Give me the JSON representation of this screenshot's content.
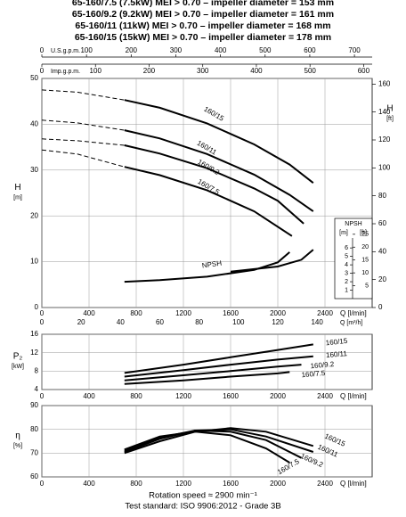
{
  "header": {
    "lines": [
      "65-160/7.5 (7.5kW) MEI > 0.70 – impeller diameter = 153 mm",
      "65-160/9.2 (9.2kW) MEI > 0.70 – impeller diameter = 161 mm",
      "65-160/11 (11kW) MEI > 0.70 – impeller diameter = 168 mm",
      "65-160/15 (15kW) MEI > 0.70 – impeller diameter = 178 mm"
    ]
  },
  "footer": {
    "lines": [
      "Rotation speed ≈ 2900 min⁻¹",
      "Test standard: ISO 9906:2012 - Grade 3B"
    ]
  },
  "chart_data": [
    {
      "type": "line",
      "y_label": "H",
      "y_unit": "[m]",
      "y2_label": "H",
      "y2_unit": "[ft]",
      "x_label": "Q [l/min]",
      "xlim": [
        0,
        2800
      ],
      "xticks": [
        0,
        400,
        800,
        1200,
        1600,
        2000,
        2400
      ],
      "ylim": [
        0,
        50
      ],
      "yticks": [
        0,
        10,
        20,
        30,
        40,
        50
      ],
      "y2lim": [
        0,
        164.04
      ],
      "y2ticks": [
        0,
        20,
        40,
        60,
        80,
        100,
        120,
        140,
        160
      ],
      "grid": true,
      "color": "#000000",
      "secondary_x_axes": [
        {
          "label": "U.S.g.p.m.",
          "position": "top",
          "lim": [
            0,
            739.7
          ],
          "ticks": [
            0,
            100,
            200,
            300,
            400,
            500,
            600,
            700
          ]
        },
        {
          "label": "Imp.g.p.m.",
          "position": "top",
          "lim": [
            0,
            615.9
          ],
          "ticks": [
            0,
            100,
            200,
            300,
            400,
            500,
            600
          ]
        },
        {
          "label": "Q [m³/h]",
          "position": "bottom",
          "lim": [
            0,
            168
          ],
          "ticks": [
            0,
            20,
            40,
            60,
            80,
            100,
            120,
            140
          ]
        }
      ],
      "series": [
        {
          "name": "160/15",
          "x": [
            0,
            300,
            700,
            1000,
            1400,
            1800,
            2100,
            2300
          ],
          "values": [
            47.5,
            47,
            45.3,
            43.6,
            40.2,
            35.6,
            31.2,
            27.2
          ],
          "segment_style": [
            "dashed",
            "dashed",
            "solid",
            "solid",
            "solid",
            "solid",
            "solid"
          ]
        },
        {
          "name": "160/11",
          "x": [
            0,
            300,
            700,
            1000,
            1400,
            1800,
            2100,
            2300
          ],
          "values": [
            40.9,
            40.3,
            38.7,
            36.9,
            33.5,
            29,
            24.6,
            21
          ],
          "segment_style": [
            "dashed",
            "dashed",
            "solid",
            "solid",
            "solid",
            "solid",
            "solid"
          ]
        },
        {
          "name": "160/9.2",
          "x": [
            0,
            300,
            700,
            1000,
            1400,
            1800,
            2000,
            2220
          ],
          "values": [
            36.8,
            36.4,
            35.4,
            33.6,
            30.4,
            26,
            23.3,
            18.3
          ],
          "segment_style": [
            "dashed",
            "dashed",
            "solid",
            "solid",
            "solid",
            "solid",
            "solid"
          ]
        },
        {
          "name": "160/7.5",
          "x": [
            0,
            300,
            700,
            1000,
            1400,
            1800,
            2120
          ],
          "values": [
            34.4,
            33.5,
            30.7,
            28.9,
            25.6,
            21,
            15.6
          ],
          "segment_style": [
            "dashed",
            "dashed",
            "solid",
            "solid",
            "solid",
            "solid"
          ]
        }
      ],
      "npsh": {
        "label": "NPSH",
        "unit": "[m]",
        "unit2": "[ft]",
        "ylim": [
          0,
          9.5
        ],
        "yticks": [
          1,
          2,
          3,
          4,
          5,
          6
        ],
        "y2lim": [
          0,
          31.17
        ],
        "y2ticks": [
          5,
          10,
          15,
          20,
          25
        ],
        "series": [
          {
            "x": [
              700,
              1000,
              1400,
              1800,
              2000,
              2100
            ],
            "values": [
              2.0,
              2.2,
              2.6,
              3.4,
              4.3,
              5.5
            ]
          },
          {
            "x": [
              1600,
              2000,
              2200,
              2300
            ],
            "values": [
              3.2,
              3.8,
              4.6,
              5.8
            ]
          }
        ]
      }
    },
    {
      "type": "line",
      "y_label": "P₂",
      "y_unit": "[kW]",
      "x_label": "Q [l/min]",
      "xlim": [
        0,
        2800
      ],
      "xticks": [
        0,
        400,
        800,
        1200,
        1600,
        2000,
        2400
      ],
      "ylim": [
        4,
        16
      ],
      "yticks": [
        4,
        8,
        12,
        16
      ],
      "grid": true,
      "color": "#000000",
      "series": [
        {
          "name": "160/15",
          "x": [
            700,
            1200,
            1600,
            2000,
            2300
          ],
          "values": [
            7.6,
            9.4,
            11,
            12.6,
            13.8
          ]
        },
        {
          "name": "160/11",
          "x": [
            700,
            1200,
            1600,
            2000,
            2300
          ],
          "values": [
            6.8,
            8.2,
            9.4,
            10.5,
            11.2
          ]
        },
        {
          "name": "160/9.2",
          "x": [
            700,
            1200,
            1600,
            2000,
            2200
          ],
          "values": [
            6,
            7.1,
            8,
            9,
            9.4
          ]
        },
        {
          "name": "160/7.5",
          "x": [
            700,
            1200,
            1600,
            2000,
            2100
          ],
          "values": [
            5.2,
            6,
            6.8,
            7.5,
            7.8
          ]
        }
      ]
    },
    {
      "type": "line",
      "y_label": "η",
      "y_unit": "[%]",
      "x_label": "Q [l/min]",
      "xlim": [
        0,
        2800
      ],
      "xticks": [
        0,
        400,
        800,
        1200,
        1600,
        2000,
        2400
      ],
      "ylim": [
        60,
        90
      ],
      "yticks": [
        60,
        70,
        80,
        90
      ],
      "grid": true,
      "color": "#000000",
      "series": [
        {
          "name": "160/15",
          "x": [
            700,
            1000,
            1300,
            1600,
            1900,
            2300
          ],
          "values": [
            70,
            75,
            79,
            80.5,
            79,
            73
          ]
        },
        {
          "name": "160/11",
          "x": [
            700,
            1000,
            1300,
            1600,
            1900,
            2300
          ],
          "values": [
            70.5,
            76,
            79.5,
            80,
            77,
            70.5
          ]
        },
        {
          "name": "160/9.2",
          "x": [
            700,
            1000,
            1300,
            1600,
            1900,
            2200
          ],
          "values": [
            71,
            76.5,
            79.5,
            79,
            75.5,
            68
          ]
        },
        {
          "name": "160/7.5",
          "x": [
            700,
            1000,
            1300,
            1600,
            1900,
            2100
          ],
          "values": [
            71.5,
            77,
            79,
            77.5,
            72,
            66
          ]
        }
      ]
    }
  ]
}
